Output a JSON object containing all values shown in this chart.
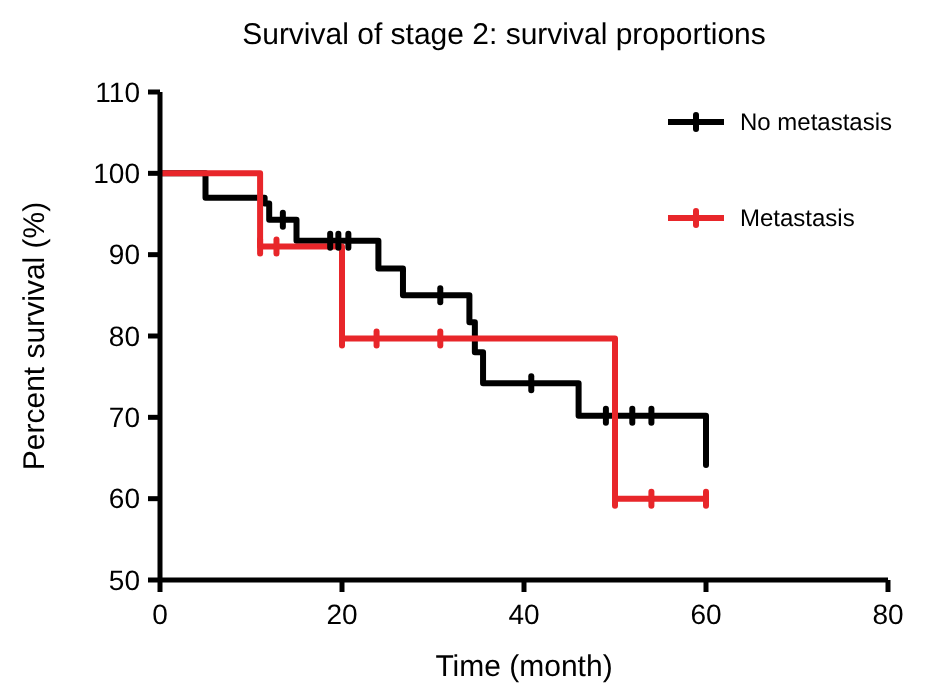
{
  "chart_data": {
    "type": "step",
    "title": "Survival of stage 2: survival proportions",
    "xlabel": "Time (month)",
    "ylabel": "Percent survival (%)",
    "xlim": [
      0,
      80
    ],
    "xticks": [
      0,
      20,
      40,
      60,
      80
    ],
    "ylim": [
      50,
      110
    ],
    "yticks": [
      50,
      60,
      70,
      80,
      90,
      100,
      110
    ],
    "grid": false,
    "legend": "top right",
    "series": [
      {
        "name": "No metastasis",
        "color": "#000000",
        "x": [
          0,
          5,
          11.5,
          12,
          15,
          24,
          26.7,
          34,
          34.6,
          35.5,
          46,
          60
        ],
        "values": [
          100,
          97,
          96.3,
          94.3,
          91.7,
          88.3,
          85,
          81.7,
          78,
          74.2,
          70.2,
          65
        ]
      },
      {
        "name": "Metastasis",
        "color": "#e8262a",
        "x": [
          0,
          11,
          20,
          50,
          60
        ],
        "values": [
          100,
          91,
          79.7,
          60,
          60
        ]
      },
      {
        "type": "scatter",
        "color": "#000000",
        "x": [
          13.5,
          18.7,
          19.6,
          20.7,
          30.8,
          40.8,
          49,
          51.9,
          54,
          60
        ],
        "values": [
          94.3,
          91.7,
          91.7,
          91.7,
          85,
          74.2,
          70.2,
          70.2,
          70.2,
          65
        ]
      },
      {
        "type": "scatter",
        "color": "#e8262a",
        "x": [
          11,
          12.8,
          20,
          23.8,
          30.8,
          50,
          54,
          60
        ],
        "values": [
          91,
          91,
          79.7,
          79.7,
          79.7,
          60,
          60,
          60
        ]
      }
    ]
  }
}
